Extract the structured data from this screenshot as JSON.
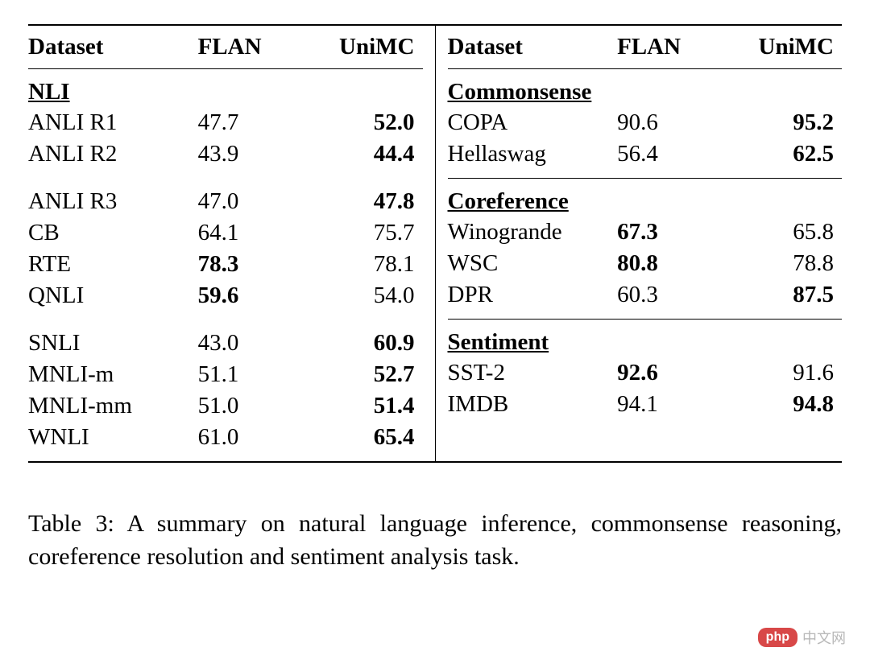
{
  "headers": {
    "dataset": "Dataset",
    "flan": "FLAN",
    "unimc": "UniMC"
  },
  "left": {
    "groups": [
      {
        "title": "NLI",
        "has_border": false,
        "rows": [
          {
            "dataset": "ANLI R1",
            "flan": "47.7",
            "unimc": "52.0",
            "flan_bold": false,
            "unimc_bold": true
          },
          {
            "dataset": "ANLI R2",
            "flan": "43.9",
            "unimc": "44.4",
            "flan_bold": false,
            "unimc_bold": true
          }
        ]
      },
      {
        "title": "",
        "has_border": false,
        "rows": [
          {
            "dataset": "ANLI R3",
            "flan": "47.0",
            "unimc": "47.8",
            "flan_bold": false,
            "unimc_bold": true
          },
          {
            "dataset": "CB",
            "flan": "64.1",
            "unimc": "75.7",
            "flan_bold": false,
            "unimc_bold": false
          },
          {
            "dataset": "RTE",
            "flan": "78.3",
            "unimc": "78.1",
            "flan_bold": true,
            "unimc_bold": false
          },
          {
            "dataset": "QNLI",
            "flan": "59.6",
            "unimc": "54.0",
            "flan_bold": true,
            "unimc_bold": false
          }
        ]
      },
      {
        "title": "",
        "has_border": false,
        "rows": [
          {
            "dataset": "SNLI",
            "flan": "43.0",
            "unimc": "60.9",
            "flan_bold": false,
            "unimc_bold": true
          },
          {
            "dataset": "MNLI-m",
            "flan": "51.1",
            "unimc": "52.7",
            "flan_bold": false,
            "unimc_bold": true
          },
          {
            "dataset": "MNLI-mm",
            "flan": "51.0",
            "unimc": "51.4",
            "flan_bold": false,
            "unimc_bold": true
          },
          {
            "dataset": "WNLI",
            "flan": "61.0",
            "unimc": "65.4",
            "flan_bold": false,
            "unimc_bold": true
          }
        ]
      }
    ]
  },
  "right": {
    "groups": [
      {
        "title": "Commonsense",
        "has_border": true,
        "rows": [
          {
            "dataset": "COPA",
            "flan": "90.6",
            "unimc": "95.2",
            "flan_bold": false,
            "unimc_bold": true
          },
          {
            "dataset": "Hellaswag",
            "flan": "56.4",
            "unimc": "62.5",
            "flan_bold": false,
            "unimc_bold": true
          }
        ]
      },
      {
        "title": "Coreference",
        "has_border": true,
        "rows": [
          {
            "dataset": "Winogrande",
            "flan": "67.3",
            "unimc": "65.8",
            "flan_bold": true,
            "unimc_bold": false
          },
          {
            "dataset": "WSC",
            "flan": "80.8",
            "unimc": "78.8",
            "flan_bold": true,
            "unimc_bold": false
          },
          {
            "dataset": "DPR",
            "flan": "60.3",
            "unimc": "87.5",
            "flan_bold": false,
            "unimc_bold": true
          }
        ]
      },
      {
        "title": "Sentiment",
        "has_border": false,
        "rows": [
          {
            "dataset": "SST-2",
            "flan": "92.6",
            "unimc": "91.6",
            "flan_bold": true,
            "unimc_bold": false
          },
          {
            "dataset": "IMDB",
            "flan": "94.1",
            "unimc": "94.8",
            "flan_bold": false,
            "unimc_bold": true
          }
        ]
      }
    ]
  },
  "caption": "Table 3: A summary on natural language inference, commonsense reasoning, coreference resolution and sentiment analysis task.",
  "watermark": {
    "badge": "php",
    "text": "中文网"
  },
  "styling": {
    "font_family": "Times New Roman",
    "body_font_size": 29,
    "caption_font_size": 30,
    "text_color": "#000000",
    "background_color": "#ffffff",
    "border_color": "#000000",
    "top_border_width": 2.5,
    "inner_border_width": 1.5,
    "watermark_badge_bg": "#d84848",
    "watermark_badge_fg": "#ffffff",
    "watermark_text_color": "#b8b8b8"
  }
}
